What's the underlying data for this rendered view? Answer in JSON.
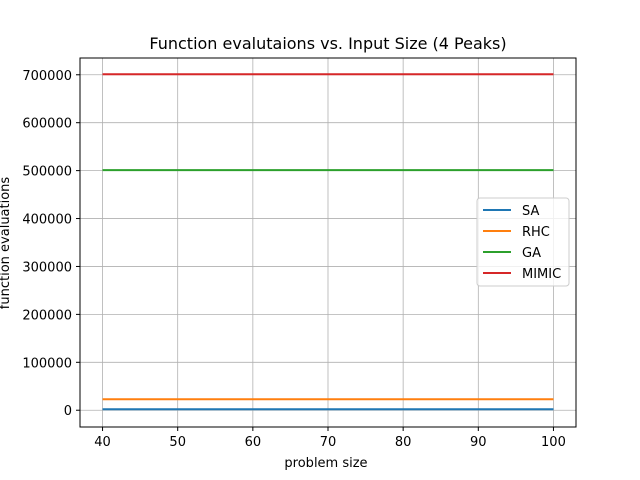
{
  "chart_data": {
    "type": "line",
    "title": "Function evalutaions vs. Input Size (4 Peaks)",
    "xlabel": "problem size",
    "ylabel": "function evaluations",
    "x": [
      40,
      50,
      60,
      70,
      80,
      90,
      100
    ],
    "xlim": [
      37,
      103
    ],
    "ylim": [
      -35000,
      735000
    ],
    "xticks": [
      40,
      50,
      60,
      70,
      80,
      90,
      100
    ],
    "yticks": [
      0,
      100000,
      200000,
      300000,
      400000,
      500000,
      600000,
      700000
    ],
    "grid": true,
    "legend_position": "center-right",
    "series": [
      {
        "name": "SA",
        "color": "#1f77b4",
        "values": [
          2000,
          2000,
          2000,
          2000,
          2000,
          2000,
          2000
        ]
      },
      {
        "name": "RHC",
        "color": "#ff7f0e",
        "values": [
          23000,
          23000,
          23000,
          23000,
          23000,
          23000,
          23000
        ]
      },
      {
        "name": "GA",
        "color": "#2ca02c",
        "values": [
          501000,
          501000,
          501000,
          501000,
          501000,
          501000,
          501000
        ]
      },
      {
        "name": "MIMIC",
        "color": "#d62728",
        "values": [
          701000,
          701000,
          701000,
          701000,
          701000,
          701000,
          701000
        ]
      }
    ]
  }
}
